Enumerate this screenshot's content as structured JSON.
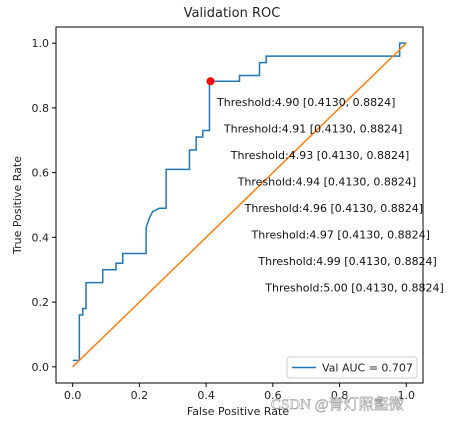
{
  "chart_data": {
    "type": "line",
    "title": "Validation ROC",
    "xlabel": "False Positive Rate",
    "ylabel": "True Positive Rate",
    "xlim": [
      -0.05,
      1.05
    ],
    "ylim": [
      -0.05,
      1.05
    ],
    "xticks": [
      "0.0",
      "0.2",
      "0.4",
      "0.6",
      "0.8",
      "1.0"
    ],
    "yticks": [
      "0.0",
      "0.2",
      "0.4",
      "0.6",
      "0.8",
      "1.0"
    ],
    "grid": false,
    "legend_position": "lower-right",
    "series": [
      {
        "name": "Val AUC = 0.707",
        "color": "#1f77b4",
        "x": [
          0.0,
          0.02,
          0.02,
          0.03,
          0.03,
          0.04,
          0.04,
          0.09,
          0.09,
          0.13,
          0.13,
          0.15,
          0.15,
          0.22,
          0.22,
          0.23,
          0.24,
          0.26,
          0.26,
          0.28,
          0.28,
          0.35,
          0.35,
          0.37,
          0.37,
          0.39,
          0.39,
          0.41,
          0.41,
          0.5,
          0.5,
          0.56,
          0.56,
          0.58,
          0.58,
          0.6,
          0.98,
          0.98,
          1.0
        ],
        "y": [
          0.02,
          0.02,
          0.16,
          0.16,
          0.18,
          0.18,
          0.26,
          0.26,
          0.3,
          0.3,
          0.32,
          0.32,
          0.35,
          0.35,
          0.43,
          0.46,
          0.48,
          0.49,
          0.49,
          0.49,
          0.61,
          0.61,
          0.67,
          0.67,
          0.71,
          0.71,
          0.73,
          0.73,
          0.8824,
          0.8824,
          0.9,
          0.9,
          0.94,
          0.94,
          0.96,
          0.96,
          0.96,
          1.0,
          1.0
        ]
      },
      {
        "name": "",
        "color": "#ff7f0e",
        "x": [
          0.0,
          1.0
        ],
        "y": [
          0.0,
          1.0
        ]
      }
    ],
    "marker": {
      "x": 0.413,
      "y": 0.8824,
      "color": "#ff0000"
    },
    "annotations": [
      "Threshold:4.90 [0.4130, 0.8824]",
      "Threshold:4.91 [0.4130, 0.8824]",
      "Threshold:4.93 [0.4130, 0.8824]",
      "Threshold:4.94 [0.4130, 0.8824]",
      "Threshold:4.96 [0.4130, 0.8824]",
      "Threshold:4.97 [0.4130, 0.8824]",
      "Threshold:4.99 [0.4130, 0.8824]",
      "Threshold:5.00 [0.4130, 0.8824]"
    ]
  },
  "watermark": "CSDN @青灯照壑微"
}
